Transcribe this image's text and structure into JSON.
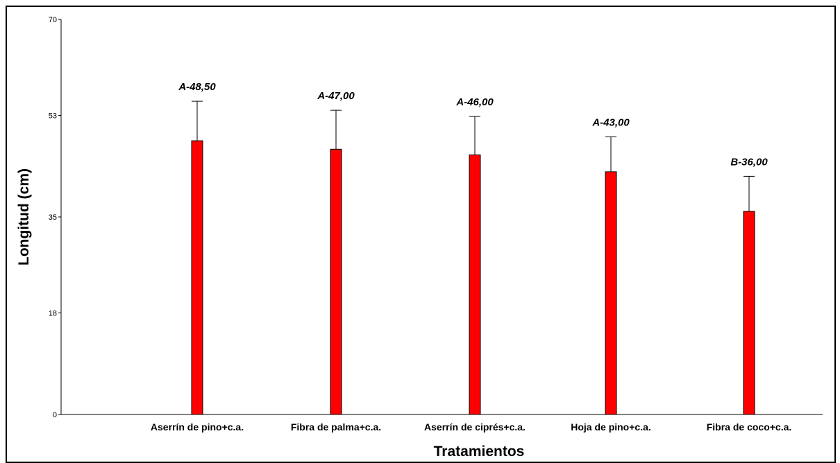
{
  "chart_data": {
    "type": "bar",
    "xlabel": "Tratamientos",
    "ylabel": "Longitud (cm)",
    "ylim": [
      0,
      70
    ],
    "yticks": [
      0,
      18,
      35,
      53,
      70
    ],
    "grid": false,
    "bar_color": "#ff0000",
    "categories": [
      "Aserrín de pino+c.a.",
      "Fibra de palma+c.a.",
      "Aserrín de ciprés+c.a.",
      "Hoja de pino+c.a.",
      "Fibra de coco+c.a."
    ],
    "values": [
      48.5,
      47.0,
      46.0,
      43.0,
      36.0
    ],
    "error_upper": [
      55.5,
      53.9,
      52.8,
      49.2,
      42.2
    ],
    "data_labels": [
      "A-48,50",
      "A-47,00",
      "A-46,00",
      "A-43,00",
      "B-36,00"
    ]
  }
}
